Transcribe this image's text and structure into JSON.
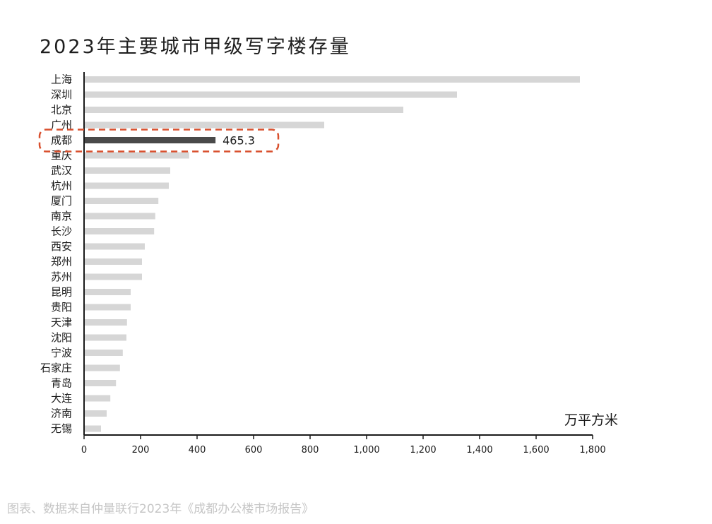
{
  "title": "2023年主要城市甲级写字楼存量",
  "source": "图表、数据来自仲量联行2023年《成都办公楼市场报告》",
  "colors": {
    "bar": "#d6d6d6",
    "highlight_bar": "#4a4a4a",
    "highlight_border": "#d9502e",
    "axis": "#1a1a1a"
  },
  "chart_data": {
    "type": "bar",
    "orientation": "horizontal",
    "categories": [
      "上海",
      "深圳",
      "北京",
      "广州",
      "成都",
      "重庆",
      "武汉",
      "杭州",
      "厦门",
      "南京",
      "长沙",
      "西安",
      "郑州",
      "苏州",
      "昆明",
      "贵阳",
      "天津",
      "沈阳",
      "宁波",
      "石家庄",
      "青岛",
      "大连",
      "济南",
      "无锡"
    ],
    "values": [
      1755,
      1320,
      1130,
      850,
      465.3,
      372,
      305,
      300,
      263,
      252,
      248,
      215,
      205,
      205,
      165,
      165,
      152,
      150,
      137,
      127,
      113,
      93,
      80,
      60
    ],
    "highlight": {
      "category": "成都",
      "label": "465.3"
    },
    "xlim": [
      0,
      1800
    ],
    "xticks": [
      0,
      200,
      400,
      600,
      800,
      1000,
      1200,
      1400,
      1600,
      1800
    ],
    "xtick_labels": [
      "0",
      "200",
      "400",
      "600",
      "800",
      "1,000",
      "1,200",
      "1,400",
      "1,600",
      "1,800"
    ],
    "unit_label": "万平方米",
    "grid": false
  }
}
